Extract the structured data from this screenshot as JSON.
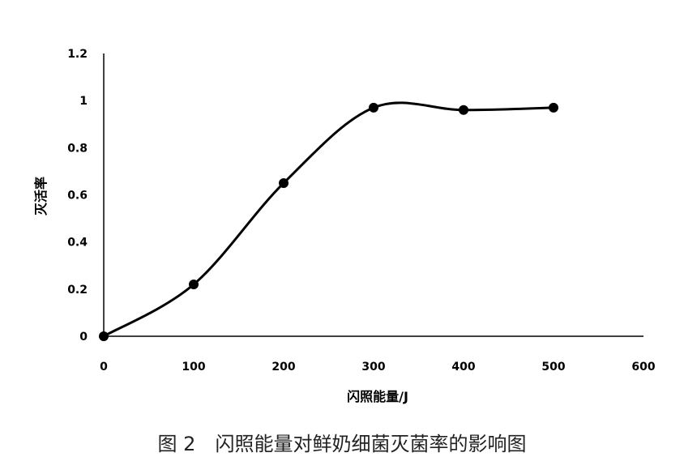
{
  "chart_data": {
    "type": "line",
    "smooth": true,
    "markers": true,
    "x": [
      0,
      100,
      200,
      300,
      400,
      500
    ],
    "series": [
      {
        "values": [
          0,
          0.22,
          0.65,
          0.97,
          0.96,
          0.97
        ]
      }
    ],
    "xlabel": "闪照能量/J",
    "ylabel": "灭活率",
    "xlim": [
      0,
      600
    ],
    "ylim": [
      0,
      1.2
    ],
    "xticks": [
      "0",
      "100",
      "200",
      "300",
      "400",
      "500",
      "600"
    ],
    "yticks": [
      "0",
      "0.2",
      "0.4",
      "0.6",
      "0.8",
      "1",
      "1.2"
    ],
    "grid": false,
    "legend": "none",
    "line_color": "#000000"
  },
  "caption": "图 2　闪照能量对鲜奶细菌灭菌率的影响图"
}
